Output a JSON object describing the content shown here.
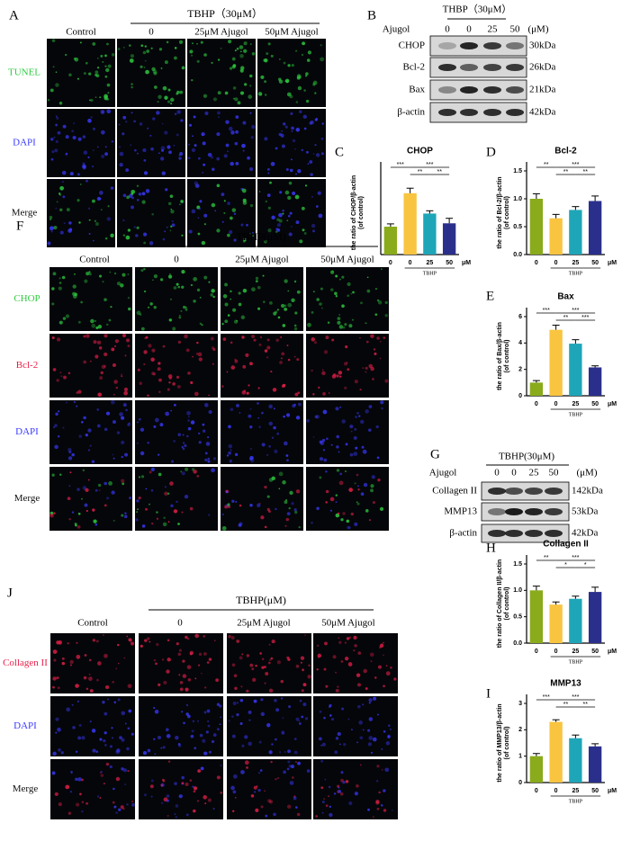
{
  "panel_a": {
    "letter": "A",
    "treatment": "TBHP（30μM）",
    "columns": [
      "Control",
      "0",
      "25μM Ajugol",
      "50μM Ajugol"
    ],
    "rows": [
      {
        "label": "TUNEL",
        "color": "#2ecc40"
      },
      {
        "label": "DAPI",
        "color": "#3a3aff"
      },
      {
        "label": "Merge",
        "color": "#111111"
      }
    ]
  },
  "panel_b": {
    "letter": "B",
    "treatment": "THBP（30μM）",
    "unit": "(μM)",
    "drug": "Ajugol",
    "lanes": [
      "0",
      "0",
      "25",
      "50"
    ],
    "rows": [
      {
        "name": "CHOP",
        "kda": "30kDa"
      },
      {
        "name": "Bcl-2",
        "kda": "26kDa"
      },
      {
        "name": "Bax",
        "kda": "21kDa"
      },
      {
        "name": "β-actin",
        "kda": "42kDa"
      }
    ]
  },
  "panel_f": {
    "letter": "F",
    "treatment": "TBHP(μM)",
    "columns": [
      "Control",
      "0",
      "25μM Ajugol",
      "50μM Ajugol"
    ],
    "rows": [
      {
        "label": "CHOP",
        "color": "#2ecc40"
      },
      {
        "label": "Bcl-2",
        "color": "#e8204a"
      },
      {
        "label": "DAPI",
        "color": "#3a3aff"
      },
      {
        "label": "Merge",
        "color": "#111111"
      }
    ]
  },
  "panel_g": {
    "letter": "G",
    "treatment": "TBHP(30μM)",
    "unit": "(μM)",
    "drug": "Ajugol",
    "lanes": [
      "0",
      "0",
      "25",
      "50"
    ],
    "rows": [
      {
        "name": "Collagen II",
        "kda": "142kDa"
      },
      {
        "name": "MMP13",
        "kda": "53kDa"
      },
      {
        "name": "β-actin",
        "kda": "42kDa"
      }
    ]
  },
  "panel_j": {
    "letter": "J",
    "treatment": "TBHP(μM)",
    "columns": [
      "Control",
      "0",
      "25μM Ajugol",
      "50μM Ajugol"
    ],
    "rows": [
      {
        "label": "Collagen II",
        "color": "#e8204a"
      },
      {
        "label": "DAPI",
        "color": "#3a3aff"
      },
      {
        "label": "Merge",
        "color": "#111111"
      }
    ]
  },
  "chart_data": [
    {
      "type": "bar",
      "panel": "C",
      "title": "CHOP",
      "ylabel": [
        "the ratio of CHOP/β-actin",
        "(of control)"
      ],
      "categories": [
        "0",
        "0",
        "25",
        "50"
      ],
      "x_unit": "μM",
      "group_label": "TBHP",
      "colors": [
        "#8aab1c",
        "#f9c440",
        "#1ea5b8",
        "#2b2f8c"
      ],
      "values": [
        1.0,
        2.2,
        1.47,
        1.12
      ],
      "errors": [
        0.1,
        0.18,
        0.1,
        0.18
      ],
      "ylim": [
        0,
        3
      ],
      "annotations": [
        {
          "text": "***",
          "between": [
            0,
            1
          ]
        },
        {
          "text": "***",
          "between": [
            1,
            3
          ]
        },
        {
          "text": "**",
          "between": [
            1,
            2
          ]
        },
        {
          "text": "**",
          "between": [
            2,
            3
          ]
        }
      ]
    },
    {
      "type": "bar",
      "panel": "D",
      "title": "Bcl-2",
      "ylabel": [
        "the ratio of Bcl-2/β-actin",
        "(of control)"
      ],
      "categories": [
        "0",
        "0",
        "25",
        "50"
      ],
      "x_unit": "μM",
      "group_label": "TBHP",
      "colors": [
        "#8aab1c",
        "#f9c440",
        "#1ea5b8",
        "#2b2f8c"
      ],
      "values": [
        1.0,
        0.65,
        0.8,
        0.96
      ],
      "errors": [
        0.09,
        0.07,
        0.06,
        0.09
      ],
      "ylim": [
        0,
        1.5
      ],
      "yticks": [
        {
          "value": 0,
          "label": "0.0"
        },
        0.5,
        {
          "value": 1,
          "label": "1.0"
        },
        1.5
      ],
      "annotations": [
        {
          "text": "**",
          "between": [
            0,
            1
          ]
        },
        {
          "text": "***",
          "between": [
            1,
            3
          ]
        },
        {
          "text": "**",
          "between": [
            1,
            2
          ]
        },
        {
          "text": "**",
          "between": [
            2,
            3
          ]
        }
      ]
    },
    {
      "type": "bar",
      "panel": "E",
      "title": "Bax",
      "ylabel": [
        "the ratio of Bax/β-actin",
        "(of control)"
      ],
      "categories": [
        "0",
        "0",
        "25",
        "50"
      ],
      "x_unit": "μM",
      "group_label": "TBHP",
      "colors": [
        "#8aab1c",
        "#f9c440",
        "#1ea5b8",
        "#2b2f8c"
      ],
      "values": [
        1.0,
        5.0,
        3.95,
        2.15
      ],
      "errors": [
        0.15,
        0.35,
        0.3,
        0.12
      ],
      "ylim": [
        0,
        6
      ],
      "yticks": [
        0,
        2,
        4,
        6
      ],
      "annotations": [
        {
          "text": "***",
          "between": [
            0,
            1
          ]
        },
        {
          "text": "***",
          "between": [
            1,
            3
          ]
        },
        {
          "text": "**",
          "between": [
            1,
            2
          ]
        },
        {
          "text": "***",
          "between": [
            2,
            3
          ]
        }
      ]
    },
    {
      "type": "bar",
      "panel": "H",
      "title": "Collagen II",
      "ylabel": [
        "the ratio of Collagen II/β-actin",
        "(of control)"
      ],
      "categories": [
        "0",
        "0",
        "25",
        "50"
      ],
      "x_unit": "μM",
      "group_label": "TBHP",
      "colors": [
        "#8aab1c",
        "#f9c440",
        "#1ea5b8",
        "#2b2f8c"
      ],
      "values": [
        1.0,
        0.73,
        0.84,
        0.97
      ],
      "errors": [
        0.08,
        0.05,
        0.05,
        0.09
      ],
      "ylim": [
        0,
        1.5
      ],
      "yticks": [
        {
          "value": 0,
          "label": "0.0"
        },
        0.5,
        {
          "value": 1,
          "label": "1.0"
        },
        1.5
      ],
      "annotations": [
        {
          "text": "**",
          "between": [
            0,
            1
          ]
        },
        {
          "text": "***",
          "between": [
            1,
            3
          ]
        },
        {
          "text": "*",
          "between": [
            1,
            2
          ]
        },
        {
          "text": "*",
          "between": [
            2,
            3
          ]
        }
      ]
    },
    {
      "type": "bar",
      "panel": "I",
      "title": "MMP13",
      "ylabel": [
        "the ratio of MMP13/β-actin",
        "(of control)"
      ],
      "categories": [
        "0",
        "0",
        "25",
        "50"
      ],
      "x_unit": "μM",
      "group_label": "TBHP",
      "colors": [
        "#8aab1c",
        "#f9c440",
        "#1ea5b8",
        "#2b2f8c"
      ],
      "values": [
        1.0,
        2.3,
        1.68,
        1.37
      ],
      "errors": [
        0.1,
        0.08,
        0.12,
        0.1
      ],
      "ylim": [
        0,
        3
      ],
      "yticks": [
        0,
        1,
        2,
        3
      ],
      "annotations": [
        {
          "text": "***",
          "between": [
            0,
            1
          ]
        },
        {
          "text": "***",
          "between": [
            1,
            3
          ]
        },
        {
          "text": "**",
          "between": [
            1,
            2
          ]
        },
        {
          "text": "**",
          "between": [
            2,
            3
          ]
        }
      ]
    }
  ]
}
